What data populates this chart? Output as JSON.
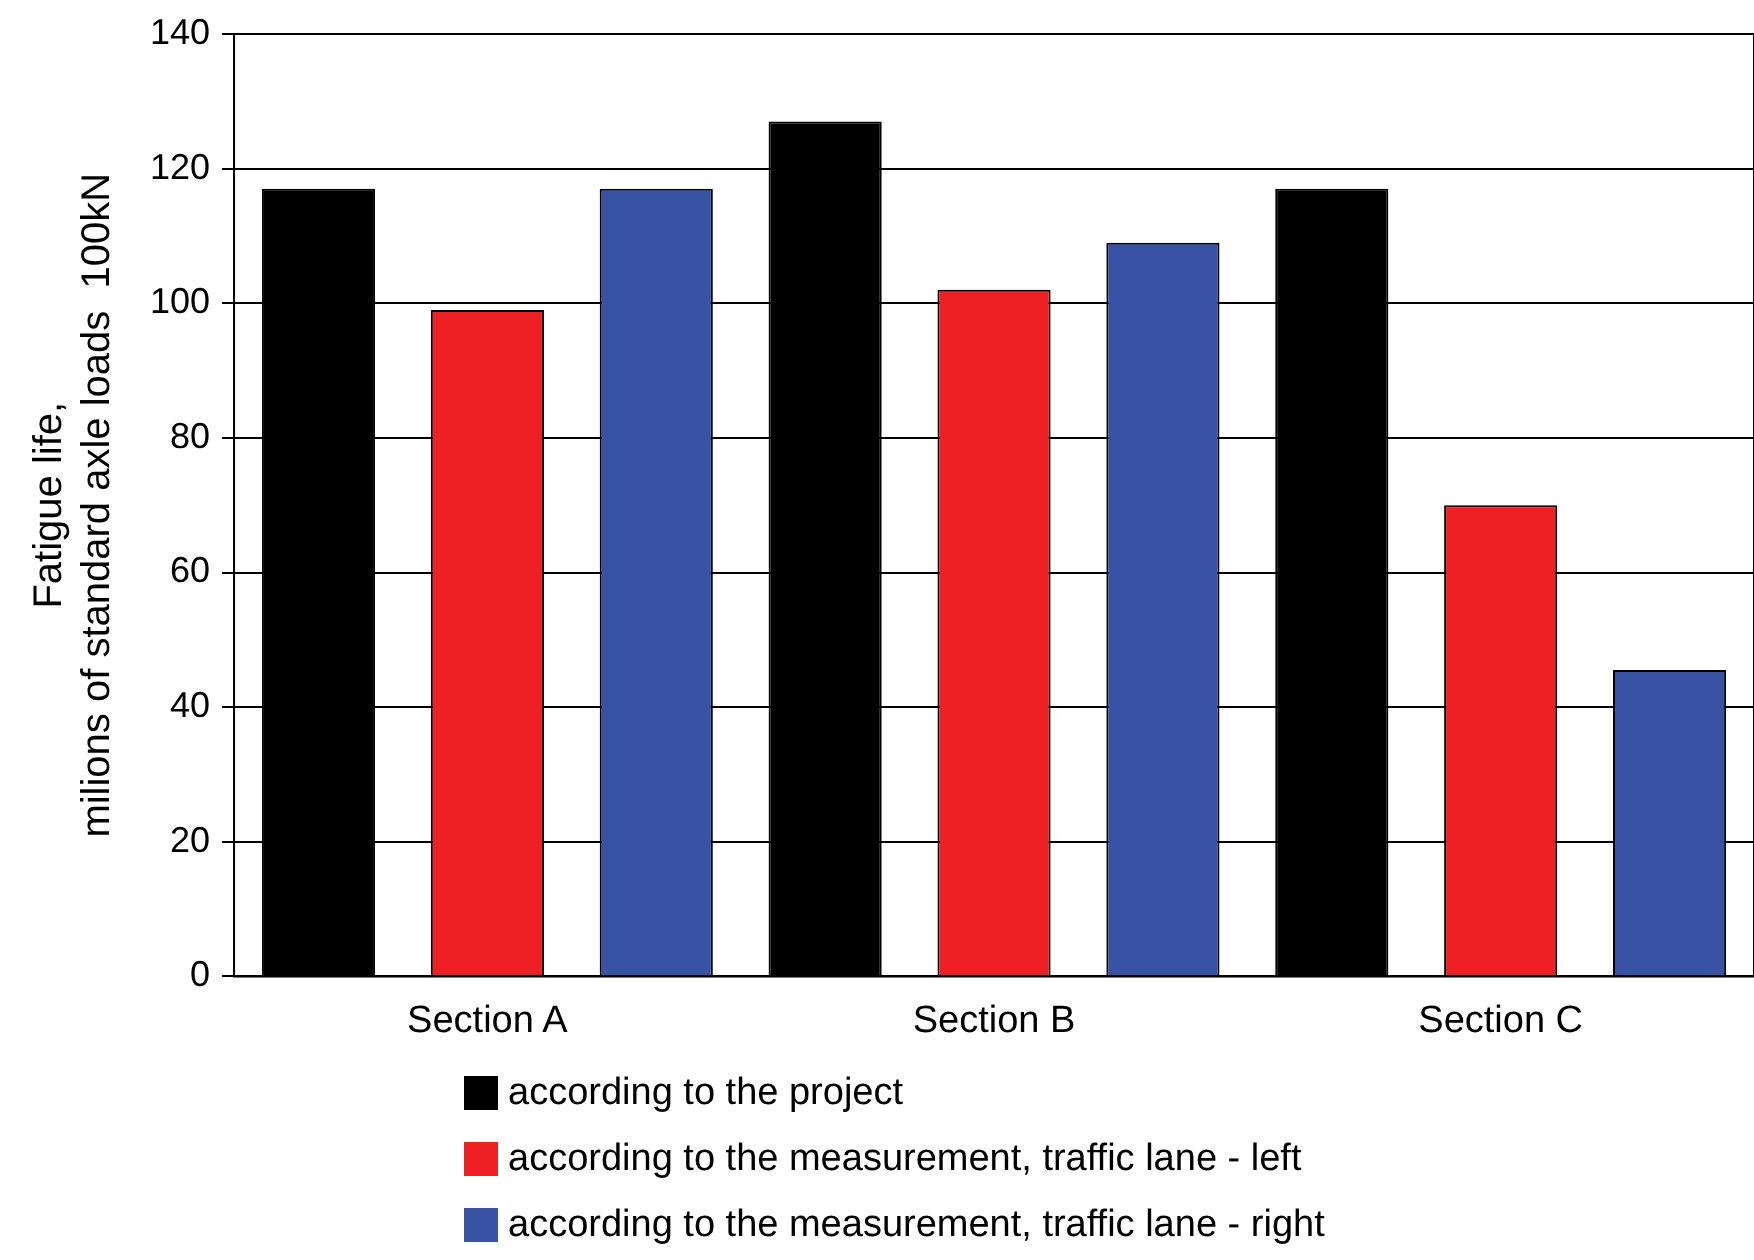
{
  "chart_data": {
    "type": "bar",
    "ylabel": "Fatigue life,\nmilions of standard axle loads  100kN",
    "categories": [
      "Section A",
      "Section B",
      "Section C"
    ],
    "series": [
      {
        "name": "according to the project",
        "color": "#000000",
        "values": [
          117,
          127,
          117
        ]
      },
      {
        "name": "according to the measurement, traffic lane - left",
        "color": "#ee2024",
        "values": [
          99,
          102,
          70
        ]
      },
      {
        "name": "according to the measurement, traffic lane - right",
        "color": "#3953a4",
        "values": [
          117,
          109,
          45.5
        ]
      }
    ],
    "ylim": [
      0,
      140
    ],
    "yticks": [
      0,
      20,
      40,
      60,
      80,
      100,
      120,
      140
    ],
    "grid": "y",
    "legend": "bottom"
  }
}
